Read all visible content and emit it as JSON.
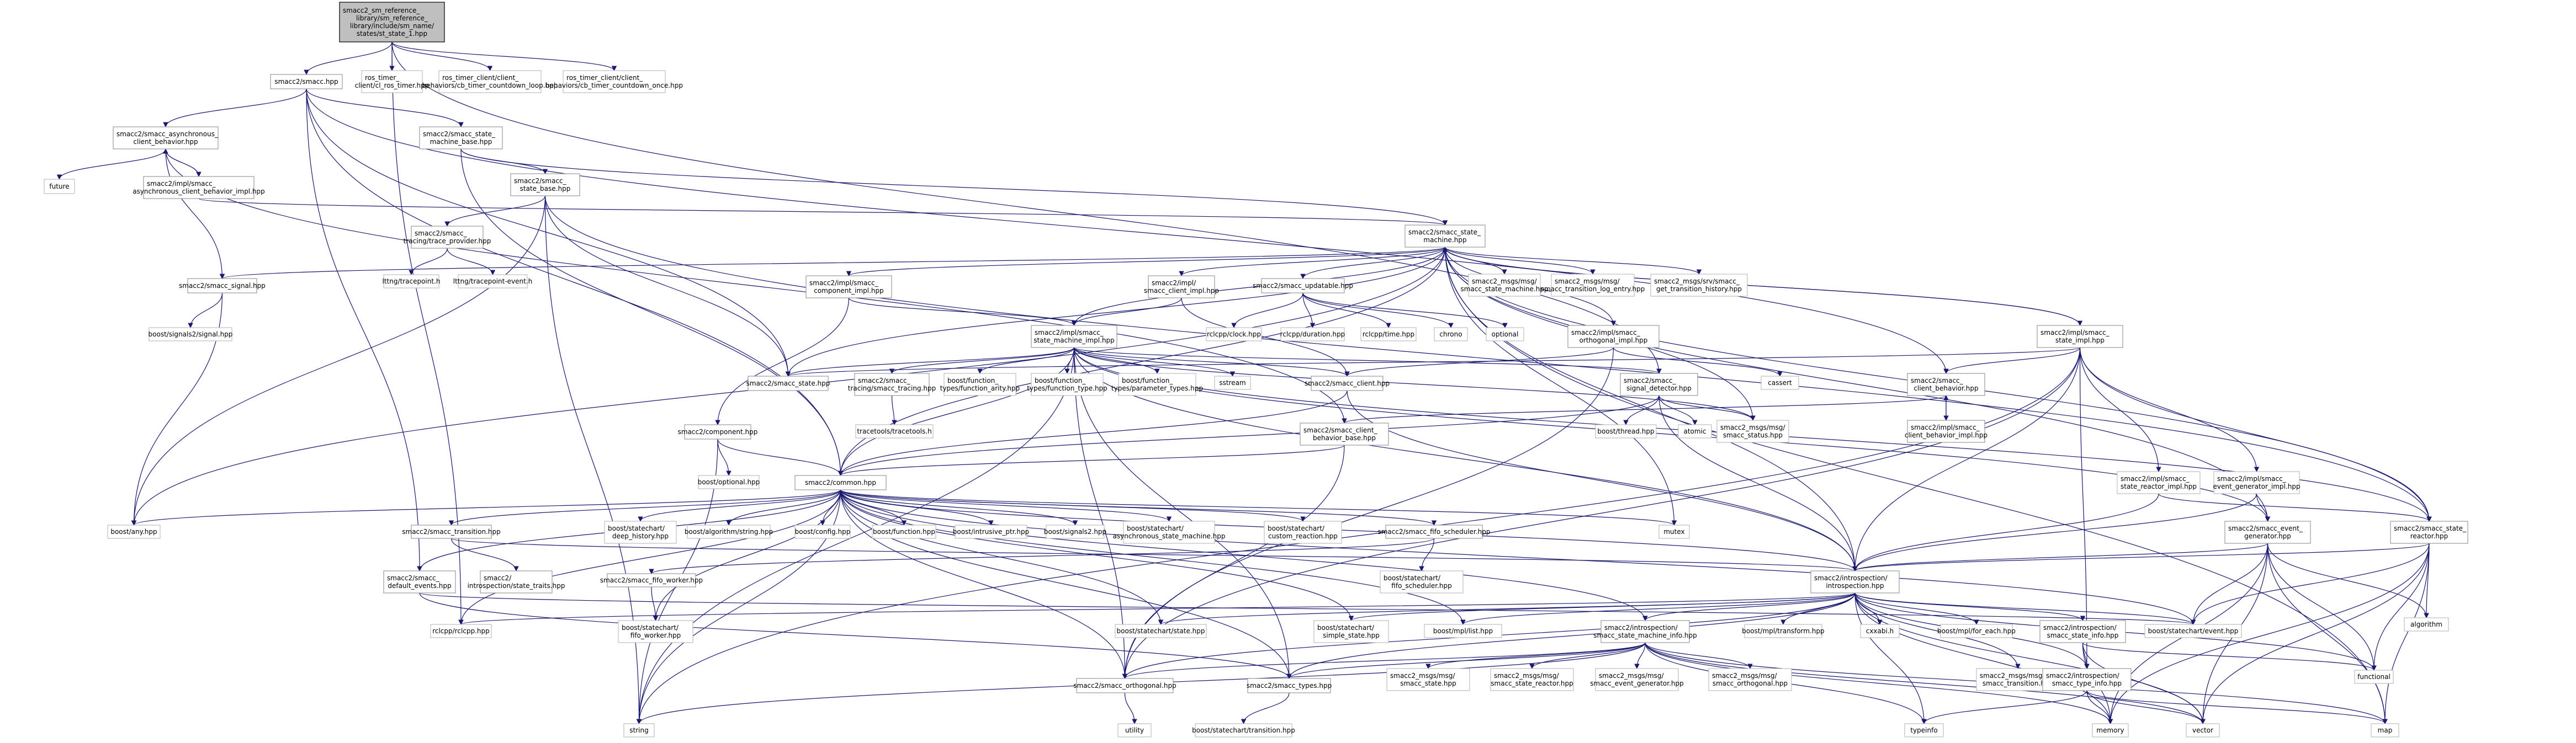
{
  "colors": {
    "edge": "#191970",
    "root_fill": "#bfbfbf",
    "node_border": "#999999",
    "external_border": "#bfbfbf",
    "background": "#ffffff"
  },
  "nodes": {
    "root": {
      "label": "smacc2_sm_reference_library/sm_reference_library/include/sm_name/states/st_state_1.hpp"
    },
    "smacc": {
      "label": "smacc2/smacc.hpp"
    },
    "ros_timer": {
      "label": "ros_timer_client/cl_ros_timer.hpp"
    },
    "cb_loop": {
      "label": "ros_timer_client/client_behaviors/cb_timer_countdown_loop.hpp"
    },
    "cb_once": {
      "label": "ros_timer_client/client_behaviors/cb_timer_countdown_once.hpp"
    },
    "async_cb": {
      "label": "smacc2/smacc_asynchronous_client_behavior.hpp"
    },
    "sm_base": {
      "label": "smacc2/smacc_state_machine_base.hpp"
    },
    "future": {
      "label": "future"
    },
    "async_impl": {
      "label": "smacc2/impl/smacc_asynchronous_client_behavior_impl.hpp"
    },
    "state_base": {
      "label": "smacc2/smacc_state_base.hpp"
    },
    "tracing_prov": {
      "label": "smacc2/smacc_tracing/trace_provider.hpp"
    },
    "sm": {
      "label": "smacc2/smacc_state_machine.hpp"
    },
    "lttng_tp": {
      "label": "lttng/tracepoint.h"
    },
    "lttng_tpe": {
      "label": "lttng/tracepoint-event.h"
    },
    "signal": {
      "label": "smacc2/smacc_signal.hpp"
    },
    "comp_impl": {
      "label": "smacc2/impl/smacc_component_impl.hpp"
    },
    "client_impl": {
      "label": "smacc2/impl/smacc_client_impl.hpp"
    },
    "updatable": {
      "label": "smacc2/smacc_updatable.hpp"
    },
    "msg_sm": {
      "label": "smacc2_msgs/msg/smacc_state_machine.hpp"
    },
    "msg_trans_log": {
      "label": "smacc2_msgs/msg/smacc_transition_log_entry.hpp"
    },
    "srv_hist": {
      "label": "smacc2_msgs/srv/smacc_get_transition_history.hpp"
    },
    "sm_impl": {
      "label": "smacc2/impl/smacc_state_machine_impl.hpp"
    },
    "bs_signal": {
      "label": "boost/signals2/signal.hpp"
    },
    "rclcpp_clock": {
      "label": "rclcpp/clock.hpp"
    },
    "rclcpp_dur": {
      "label": "rclcpp/duration.hpp"
    },
    "rclcpp_time": {
      "label": "rclcpp/time.hpp"
    },
    "chrono": {
      "label": "chrono"
    },
    "optional": {
      "label": "optional"
    },
    "orth_impl": {
      "label": "smacc2/impl/smacc_orthogonal_impl.hpp"
    },
    "state_impl": {
      "label": "smacc2/impl/smacc_state_impl.hpp"
    },
    "state": {
      "label": "smacc2/smacc_state.hpp"
    },
    "tracing": {
      "label": "smacc2/smacc_tracing/smacc_tracing.hpp"
    },
    "fn_arity": {
      "label": "boost/function_types/function_arity.hpp"
    },
    "fn_type": {
      "label": "boost/function_types/function_type.hpp"
    },
    "fn_param": {
      "label": "boost/function_types/parameter_types.hpp"
    },
    "sstream": {
      "label": "sstream"
    },
    "client": {
      "label": "smacc2/smacc_client.hpp"
    },
    "signal_det": {
      "label": "smacc2/smacc_signal_detector.hpp"
    },
    "cassert": {
      "label": "cassert"
    },
    "client_beh": {
      "label": "smacc2/smacc_client_behavior.hpp"
    },
    "tracetools": {
      "label": "tracetools/tracetools.h"
    },
    "component": {
      "label": "smacc2/component.hpp"
    },
    "client_beh_base": {
      "label": "smacc2/smacc_client_behavior_base.hpp"
    },
    "bthread": {
      "label": "boost/thread.hpp"
    },
    "atomic": {
      "label": "atomic"
    },
    "msg_status": {
      "label": "smacc2_msgs/msg/smacc_status.hpp"
    },
    "client_beh_impl": {
      "label": "smacc2/impl/smacc_client_behavior_impl.hpp"
    },
    "bopt": {
      "label": "boost/optional.hpp"
    },
    "common": {
      "label": "smacc2/common.hpp"
    },
    "sr_impl": {
      "label": "smacc2/impl/smacc_state_reactor_impl.hpp"
    },
    "evgen_impl": {
      "label": "smacc2/impl/smacc_event_generator_impl.hpp"
    },
    "bany": {
      "label": "boost/any.hpp"
    },
    "sc_deep": {
      "label": "boost/statechart/deep_history.hpp"
    },
    "balgo": {
      "label": "boost/algorithm/string.hpp"
    },
    "bconfig": {
      "label": "boost/config.hpp"
    },
    "bfunc": {
      "label": "boost/function.hpp"
    },
    "bintr": {
      "label": "boost/intrusive_ptr.hpp"
    },
    "bsig2": {
      "label": "boost/signals2.hpp"
    },
    "sc_async": {
      "label": "boost/statechart/asynchronous_state_machine.hpp"
    },
    "sc_custom": {
      "label": "boost/statechart/custom_reaction.hpp"
    },
    "fifo_sched": {
      "label": "smacc2/smacc_fifo_scheduler.hpp"
    },
    "mutex": {
      "label": "mutex"
    },
    "event_gen": {
      "label": "smacc2/smacc_event_generator.hpp"
    },
    "state_reactor": {
      "label": "smacc2/smacc_state_reactor.hpp"
    },
    "transition": {
      "label": "smacc2/smacc_transition.hpp"
    },
    "default_ev": {
      "label": "smacc2/smacc_default_events.hpp"
    },
    "intro_st": {
      "label": "smacc2/introspection/state_traits.hpp"
    },
    "fifo_worker": {
      "label": "smacc2/smacc_fifo_worker.hpp"
    },
    "sc_fifo_sched": {
      "label": "boost/statechart/fifo_scheduler.hpp"
    },
    "introspection": {
      "label": "smacc2/introspection/introspection.hpp"
    },
    "algorithm": {
      "label": "algorithm"
    },
    "rclcpp": {
      "label": "rclcpp/rclcpp.hpp"
    },
    "sc_fifo_worker": {
      "label": "boost/statechart/fifo_worker.hpp"
    },
    "sc_state": {
      "label": "boost/statechart/state.hpp"
    },
    "sc_simple": {
      "label": "boost/statechart/simple_state.hpp"
    },
    "mpl_list": {
      "label": "boost/mpl/list.hpp"
    },
    "intro_smi": {
      "label": "smacc2/introspection/smacc_state_machine_info.hpp"
    },
    "mpl_transform": {
      "label": "boost/mpl/transform.hpp"
    },
    "cxxabi": {
      "label": "cxxabi.h"
    },
    "mpl_foreach": {
      "label": "boost/mpl/for_each.hpp"
    },
    "intro_si": {
      "label": "smacc2/introspection/smacc_state_info.hpp"
    },
    "sc_event": {
      "label": "boost/statechart/event.hpp"
    },
    "msg_state": {
      "label": "smacc2_msgs/msg/smacc_state.hpp"
    },
    "msg_sreactor": {
      "label": "smacc2_msgs/msg/smacc_state_reactor.hpp"
    },
    "msg_evgen": {
      "label": "smacc2_msgs/msg/smacc_event_generator.hpp"
    },
    "msg_orth": {
      "label": "smacc2_msgs/msg/smacc_orthogonal.hpp"
    },
    "msg_trans": {
      "label": "smacc2_msgs/msg/smacc_transition.hpp"
    },
    "functional": {
      "label": "functional"
    },
    "orthogonal": {
      "label": "smacc2/smacc_orthogonal.hpp"
    },
    "types": {
      "label": "smacc2/smacc_types.hpp"
    },
    "type_info": {
      "label": "smacc2/introspection/smacc_type_info.hpp"
    },
    "utility": {
      "label": "utility"
    },
    "sc_transition": {
      "label": "boost/statechart/transition.hpp"
    },
    "string": {
      "label": "string"
    },
    "typeinfo": {
      "label": "typeinfo"
    },
    "memory": {
      "label": "memory"
    },
    "vector": {
      "label": "vector"
    },
    "map": {
      "label": "map"
    }
  }
}
